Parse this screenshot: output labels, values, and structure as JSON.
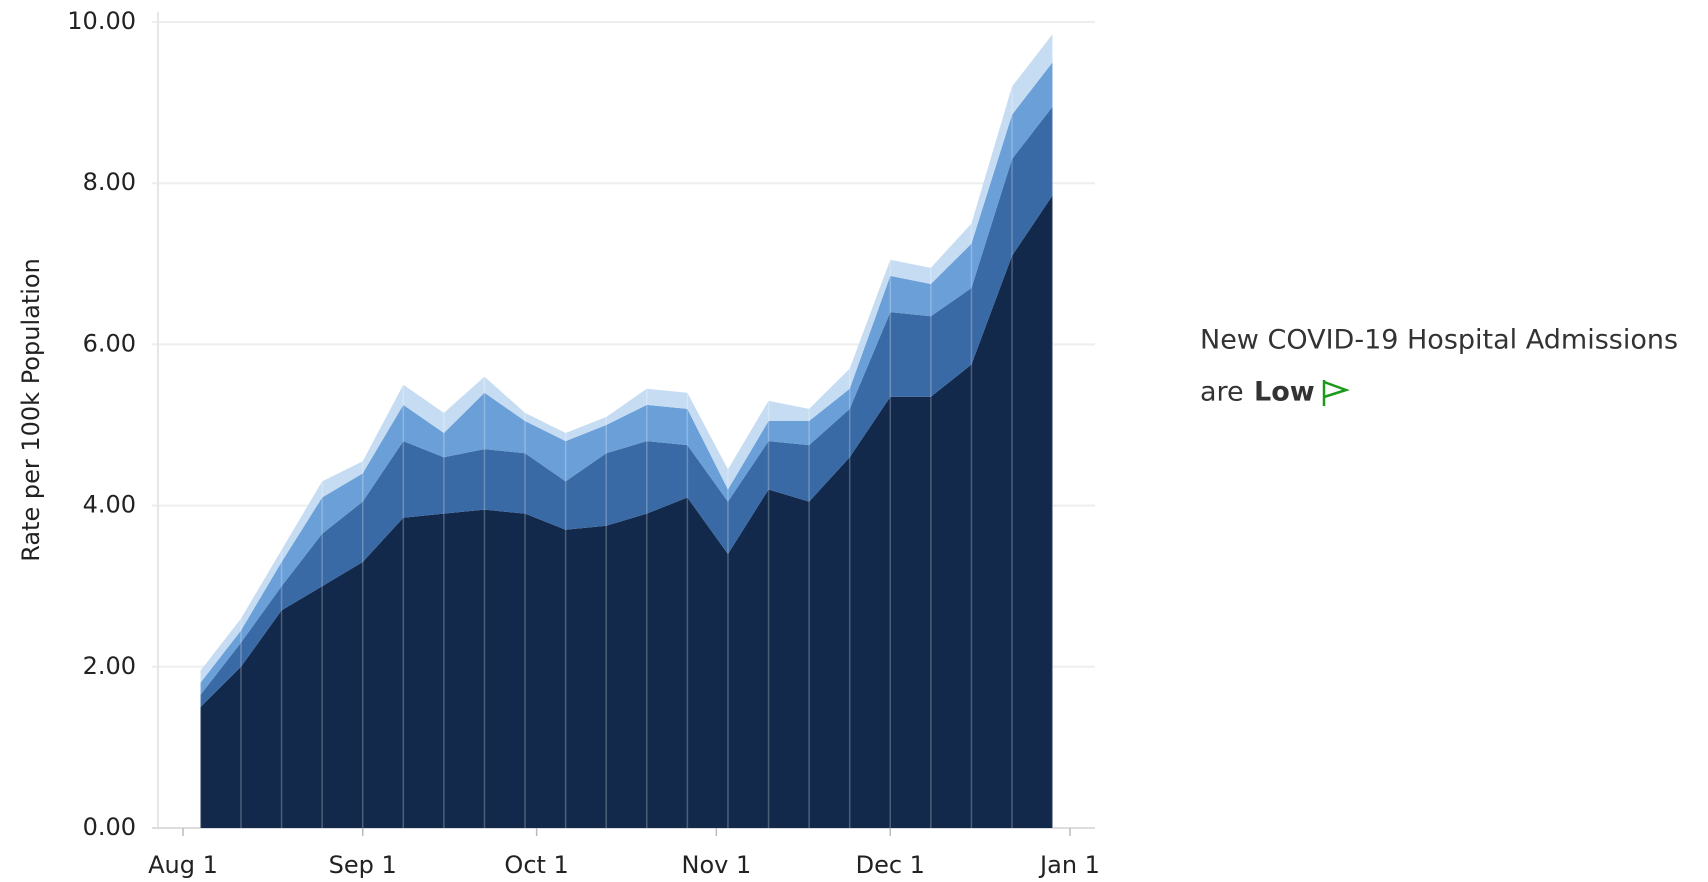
{
  "chart_data": {
    "type": "stacked_area",
    "y_label": "Rate per 100k Population",
    "x": [
      3,
      10,
      17,
      24,
      31,
      38,
      45,
      52,
      59,
      66,
      73,
      80,
      87,
      94,
      101,
      108,
      115,
      122,
      129,
      136,
      143,
      150
    ],
    "xlim": [
      0,
      153
    ],
    "xticks": [
      {
        "value": 0,
        "label": "Aug 1"
      },
      {
        "value": 31,
        "label": "Sep 1"
      },
      {
        "value": 61,
        "label": "Oct 1"
      },
      {
        "value": 92,
        "label": "Nov 1"
      },
      {
        "value": 122,
        "label": "Dec 1"
      },
      {
        "value": 153,
        "label": "Jan 1"
      }
    ],
    "ylim": [
      0,
      10
    ],
    "yticks": [
      {
        "value": 0,
        "label": "0.00"
      },
      {
        "value": 2,
        "label": "2.00"
      },
      {
        "value": 4,
        "label": "4.00"
      },
      {
        "value": 6,
        "label": "6.00"
      },
      {
        "value": 8,
        "label": "8.00"
      },
      {
        "value": 10,
        "label": "10.00"
      }
    ],
    "grid": true,
    "series": [
      {
        "color": "#12294b",
        "values": [
          1.5,
          2.0,
          2.7,
          3.0,
          3.3,
          3.85,
          3.9,
          3.95,
          3.9,
          3.7,
          3.75,
          3.9,
          4.1,
          3.4,
          4.2,
          4.05,
          4.6,
          5.35,
          5.35,
          5.75,
          7.1,
          7.85
        ]
      },
      {
        "color": "#3a6aa5",
        "values": [
          0.15,
          0.3,
          0.3,
          0.65,
          0.75,
          0.95,
          0.7,
          0.75,
          0.75,
          0.6,
          0.9,
          0.9,
          0.65,
          0.65,
          0.6,
          0.7,
          0.6,
          1.05,
          1.0,
          0.95,
          1.2,
          1.1
        ]
      },
      {
        "color": "#6a9fd8",
        "values": [
          0.15,
          0.15,
          0.3,
          0.45,
          0.35,
          0.45,
          0.3,
          0.7,
          0.4,
          0.5,
          0.35,
          0.45,
          0.45,
          0.15,
          0.25,
          0.3,
          0.25,
          0.45,
          0.4,
          0.55,
          0.55,
          0.55
        ]
      },
      {
        "color": "#c6dcf3",
        "values": [
          0.15,
          0.15,
          0.15,
          0.2,
          0.15,
          0.25,
          0.25,
          0.2,
          0.1,
          0.1,
          0.1,
          0.2,
          0.2,
          0.25,
          0.25,
          0.15,
          0.25,
          0.2,
          0.2,
          0.25,
          0.35,
          0.35
        ]
      }
    ]
  },
  "annotation": {
    "line1": "New COVID-19 Hospital Admissions",
    "prefix": "are",
    "level": "Low",
    "level_color": "#1a9a1a"
  }
}
